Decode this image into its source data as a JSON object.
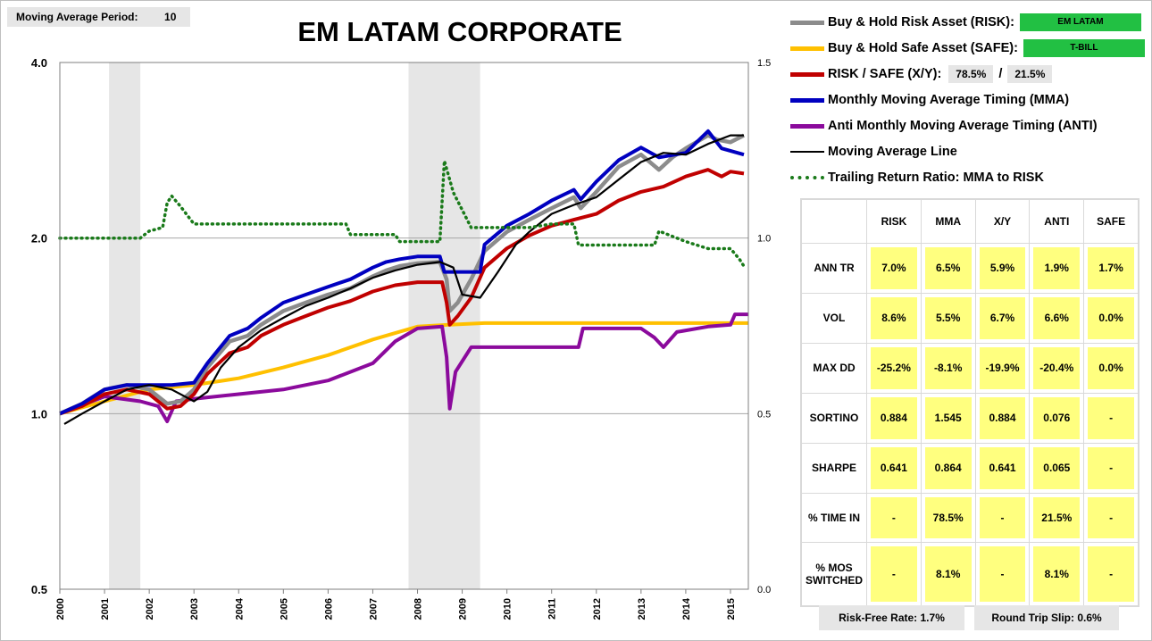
{
  "moving_average": {
    "label": "Moving Average Period:",
    "value": "10"
  },
  "title": "EM LATAM CORPORATE",
  "legend": {
    "risk_label": "Buy & Hold Risk Asset (RISK):",
    "risk_tag": "EM LATAM",
    "safe_label": "Buy & Hold Safe Asset (SAFE):",
    "safe_tag": "T-BILL",
    "xy_label": "RISK / SAFE (X/Y):",
    "xy_risk": "78.5%",
    "xy_sep": "/",
    "xy_safe": "21.5%",
    "mma_label": "Monthly Moving Average Timing (MMA)",
    "anti_label": "Anti Monthly Moving Average Timing (ANTI)",
    "ma_label": "Moving Average Line",
    "ratio_label": "Trailing Return Ratio: MMA to RISK"
  },
  "colors": {
    "risk": "#8c8c8c",
    "safe": "#ffc000",
    "xy": "#c00000",
    "mma": "#0000c0",
    "anti": "#8b0a9c",
    "ma": "#000000",
    "ratio": "#1a7a1a",
    "shade": "#e6e6e6",
    "tag": "#22c043",
    "cell": "#ffff7f"
  },
  "stats": {
    "columns": [
      "RISK",
      "MMA",
      "X/Y",
      "ANTI",
      "SAFE"
    ],
    "rows": [
      {
        "label": "ANN TR",
        "values": [
          "7.0%",
          "6.5%",
          "5.9%",
          "1.9%",
          "1.7%"
        ]
      },
      {
        "label": "VOL",
        "values": [
          "8.6%",
          "5.5%",
          "6.7%",
          "6.6%",
          "0.0%"
        ]
      },
      {
        "label": "MAX DD",
        "values": [
          "-25.2%",
          "-8.1%",
          "-19.9%",
          "-20.4%",
          "0.0%"
        ]
      },
      {
        "label": "SORTINO",
        "values": [
          "0.884",
          "1.545",
          "0.884",
          "0.076",
          "-"
        ]
      },
      {
        "label": "SHARPE",
        "values": [
          "0.641",
          "0.864",
          "0.641",
          "0.065",
          "-"
        ]
      },
      {
        "label": "% TIME IN",
        "values": [
          "-",
          "78.5%",
          "-",
          "21.5%",
          "-"
        ]
      },
      {
        "label": "% MOS SWITCHED",
        "values": [
          "-",
          "8.1%",
          "-",
          "8.1%",
          "-"
        ]
      }
    ]
  },
  "footer": {
    "risk_free": "Risk-Free Rate:   1.7%",
    "slip": "Round Trip Slip:  0.6%"
  },
  "chart_data": {
    "type": "line",
    "x_ticks": [
      "2000",
      "2001",
      "2002",
      "2003",
      "2004",
      "2005",
      "2006",
      "2007",
      "2008",
      "2009",
      "2010",
      "2011",
      "2012",
      "2013",
      "2014",
      "2015"
    ],
    "xlim": [
      2000.0,
      2015.4
    ],
    "y_left": {
      "scale": "log",
      "lim": [
        0.5,
        4.0
      ],
      "ticks": [
        "0.5",
        "1.0",
        "2.0",
        "4.0"
      ]
    },
    "y_right": {
      "scale": "linear",
      "lim": [
        0.0,
        1.5
      ],
      "ticks": [
        "0.0",
        "0.5",
        "1.0",
        "1.5"
      ]
    },
    "grid": "horizontal",
    "recession_shading": [
      [
        2001.1,
        2001.8
      ],
      [
        2007.8,
        2009.4
      ]
    ],
    "series": [
      {
        "name": "RISK",
        "axis": "left",
        "points": [
          [
            2000.0,
            1.0
          ],
          [
            2000.5,
            1.04
          ],
          [
            2001.0,
            1.1
          ],
          [
            2001.5,
            1.12
          ],
          [
            2002.0,
            1.1
          ],
          [
            2002.4,
            1.04
          ],
          [
            2002.7,
            1.05
          ],
          [
            2003.0,
            1.1
          ],
          [
            2003.3,
            1.2
          ],
          [
            2003.8,
            1.33
          ],
          [
            2004.2,
            1.36
          ],
          [
            2004.5,
            1.42
          ],
          [
            2005.0,
            1.5
          ],
          [
            2005.5,
            1.55
          ],
          [
            2006.0,
            1.6
          ],
          [
            2006.5,
            1.64
          ],
          [
            2007.0,
            1.72
          ],
          [
            2007.3,
            1.76
          ],
          [
            2007.6,
            1.79
          ],
          [
            2008.0,
            1.81
          ],
          [
            2008.5,
            1.82
          ],
          [
            2008.65,
            1.7
          ],
          [
            2008.72,
            1.5
          ],
          [
            2008.9,
            1.55
          ],
          [
            2009.2,
            1.7
          ],
          [
            2009.5,
            1.9
          ],
          [
            2010.0,
            2.05
          ],
          [
            2010.5,
            2.15
          ],
          [
            2011.0,
            2.25
          ],
          [
            2011.5,
            2.35
          ],
          [
            2011.65,
            2.25
          ],
          [
            2012.0,
            2.4
          ],
          [
            2012.5,
            2.65
          ],
          [
            2013.0,
            2.78
          ],
          [
            2013.4,
            2.62
          ],
          [
            2013.7,
            2.75
          ],
          [
            2014.0,
            2.85
          ],
          [
            2014.5,
            3.0
          ],
          [
            2014.7,
            2.95
          ],
          [
            2015.0,
            2.92
          ],
          [
            2015.3,
            3.0
          ]
        ]
      },
      {
        "name": "SAFE",
        "axis": "left",
        "points": [
          [
            2000.0,
            1.0
          ],
          [
            2001.0,
            1.05
          ],
          [
            2002.0,
            1.1
          ],
          [
            2003.0,
            1.12
          ],
          [
            2004.0,
            1.15
          ],
          [
            2005.0,
            1.2
          ],
          [
            2006.0,
            1.26
          ],
          [
            2007.0,
            1.34
          ],
          [
            2008.0,
            1.41
          ],
          [
            2008.7,
            1.42
          ],
          [
            2009.5,
            1.43
          ],
          [
            2011.0,
            1.43
          ],
          [
            2013.0,
            1.43
          ],
          [
            2015.4,
            1.43
          ]
        ]
      },
      {
        "name": "X/Y",
        "axis": "left",
        "points": [
          [
            2000.0,
            1.0
          ],
          [
            2000.5,
            1.03
          ],
          [
            2001.0,
            1.08
          ],
          [
            2001.5,
            1.1
          ],
          [
            2002.0,
            1.08
          ],
          [
            2002.4,
            1.02
          ],
          [
            2002.7,
            1.03
          ],
          [
            2003.0,
            1.08
          ],
          [
            2003.3,
            1.17
          ],
          [
            2003.8,
            1.27
          ],
          [
            2004.2,
            1.3
          ],
          [
            2004.5,
            1.36
          ],
          [
            2005.0,
            1.42
          ],
          [
            2005.5,
            1.47
          ],
          [
            2006.0,
            1.52
          ],
          [
            2006.5,
            1.56
          ],
          [
            2007.0,
            1.62
          ],
          [
            2007.5,
            1.66
          ],
          [
            2008.0,
            1.68
          ],
          [
            2008.55,
            1.68
          ],
          [
            2008.65,
            1.55
          ],
          [
            2008.72,
            1.42
          ],
          [
            2008.9,
            1.47
          ],
          [
            2009.2,
            1.58
          ],
          [
            2009.5,
            1.78
          ],
          [
            2010.0,
            1.92
          ],
          [
            2010.5,
            2.02
          ],
          [
            2011.0,
            2.1
          ],
          [
            2011.5,
            2.15
          ],
          [
            2012.0,
            2.2
          ],
          [
            2012.5,
            2.32
          ],
          [
            2013.0,
            2.4
          ],
          [
            2013.5,
            2.45
          ],
          [
            2014.0,
            2.55
          ],
          [
            2014.5,
            2.62
          ],
          [
            2014.8,
            2.55
          ],
          [
            2015.0,
            2.6
          ],
          [
            2015.3,
            2.58
          ]
        ]
      },
      {
        "name": "MMA",
        "axis": "left",
        "points": [
          [
            2000.0,
            1.0
          ],
          [
            2000.5,
            1.04
          ],
          [
            2001.0,
            1.1
          ],
          [
            2001.5,
            1.12
          ],
          [
            2002.0,
            1.12
          ],
          [
            2002.5,
            1.12
          ],
          [
            2003.0,
            1.13
          ],
          [
            2003.3,
            1.22
          ],
          [
            2003.8,
            1.36
          ],
          [
            2004.2,
            1.4
          ],
          [
            2004.5,
            1.46
          ],
          [
            2005.0,
            1.55
          ],
          [
            2005.5,
            1.6
          ],
          [
            2006.0,
            1.65
          ],
          [
            2006.5,
            1.7
          ],
          [
            2007.0,
            1.78
          ],
          [
            2007.3,
            1.82
          ],
          [
            2007.6,
            1.84
          ],
          [
            2008.0,
            1.86
          ],
          [
            2008.5,
            1.86
          ],
          [
            2008.6,
            1.75
          ],
          [
            2009.4,
            1.75
          ],
          [
            2009.5,
            1.95
          ],
          [
            2010.0,
            2.1
          ],
          [
            2010.5,
            2.2
          ],
          [
            2011.0,
            2.32
          ],
          [
            2011.5,
            2.42
          ],
          [
            2011.65,
            2.33
          ],
          [
            2012.0,
            2.5
          ],
          [
            2012.5,
            2.72
          ],
          [
            2013.0,
            2.86
          ],
          [
            2013.4,
            2.75
          ],
          [
            2014.0,
            2.8
          ],
          [
            2014.5,
            3.05
          ],
          [
            2014.8,
            2.85
          ],
          [
            2015.3,
            2.78
          ]
        ]
      },
      {
        "name": "ANTI",
        "axis": "left",
        "points": [
          [
            2000.0,
            1.0
          ],
          [
            2001.0,
            1.07
          ],
          [
            2001.8,
            1.05
          ],
          [
            2002.2,
            1.03
          ],
          [
            2002.4,
            0.97
          ],
          [
            2002.6,
            1.05
          ],
          [
            2003.0,
            1.06
          ],
          [
            2004.0,
            1.08
          ],
          [
            2005.0,
            1.1
          ],
          [
            2006.0,
            1.14
          ],
          [
            2007.0,
            1.22
          ],
          [
            2007.5,
            1.33
          ],
          [
            2008.0,
            1.4
          ],
          [
            2008.55,
            1.41
          ],
          [
            2008.65,
            1.25
          ],
          [
            2008.72,
            1.02
          ],
          [
            2008.85,
            1.18
          ],
          [
            2009.2,
            1.3
          ],
          [
            2010.0,
            1.3
          ],
          [
            2011.0,
            1.3
          ],
          [
            2011.6,
            1.3
          ],
          [
            2011.7,
            1.4
          ],
          [
            2013.0,
            1.4
          ],
          [
            2013.3,
            1.35
          ],
          [
            2013.5,
            1.3
          ],
          [
            2013.8,
            1.38
          ],
          [
            2014.5,
            1.41
          ],
          [
            2015.0,
            1.42
          ],
          [
            2015.1,
            1.48
          ],
          [
            2015.4,
            1.48
          ]
        ]
      },
      {
        "name": "Moving Average Line",
        "axis": "left",
        "points": [
          [
            2000.1,
            0.96
          ],
          [
            2000.5,
            1.0
          ],
          [
            2001.0,
            1.05
          ],
          [
            2001.5,
            1.1
          ],
          [
            2002.0,
            1.12
          ],
          [
            2002.5,
            1.1
          ],
          [
            2003.0,
            1.05
          ],
          [
            2003.3,
            1.09
          ],
          [
            2003.6,
            1.2
          ],
          [
            2004.0,
            1.3
          ],
          [
            2004.5,
            1.39
          ],
          [
            2005.0,
            1.46
          ],
          [
            2005.5,
            1.53
          ],
          [
            2006.0,
            1.58
          ],
          [
            2006.5,
            1.64
          ],
          [
            2007.0,
            1.71
          ],
          [
            2007.5,
            1.76
          ],
          [
            2008.0,
            1.8
          ],
          [
            2008.5,
            1.82
          ],
          [
            2008.8,
            1.78
          ],
          [
            2009.0,
            1.6
          ],
          [
            2009.4,
            1.58
          ],
          [
            2009.8,
            1.75
          ],
          [
            2010.2,
            1.95
          ],
          [
            2010.5,
            2.05
          ],
          [
            2011.0,
            2.2
          ],
          [
            2011.5,
            2.28
          ],
          [
            2012.0,
            2.35
          ],
          [
            2012.5,
            2.52
          ],
          [
            2013.0,
            2.7
          ],
          [
            2013.5,
            2.8
          ],
          [
            2014.0,
            2.78
          ],
          [
            2014.5,
            2.9
          ],
          [
            2015.0,
            3.0
          ],
          [
            2015.3,
            3.0
          ]
        ]
      },
      {
        "name": "Trailing Return Ratio: MMA to RISK",
        "axis": "right",
        "points": [
          [
            2000.0,
            1.0
          ],
          [
            2001.8,
            1.0
          ],
          [
            2002.0,
            1.02
          ],
          [
            2002.3,
            1.03
          ],
          [
            2002.4,
            1.1
          ],
          [
            2002.5,
            1.12
          ],
          [
            2002.7,
            1.09
          ],
          [
            2003.0,
            1.04
          ],
          [
            2004.0,
            1.04
          ],
          [
            2005.0,
            1.04
          ],
          [
            2006.0,
            1.04
          ],
          [
            2006.4,
            1.04
          ],
          [
            2006.5,
            1.01
          ],
          [
            2007.5,
            1.01
          ],
          [
            2007.6,
            0.99
          ],
          [
            2008.5,
            0.99
          ],
          [
            2008.6,
            1.22
          ],
          [
            2008.8,
            1.13
          ],
          [
            2009.0,
            1.08
          ],
          [
            2009.2,
            1.03
          ],
          [
            2010.0,
            1.03
          ],
          [
            2010.5,
            1.03
          ],
          [
            2011.0,
            1.04
          ],
          [
            2011.5,
            1.04
          ],
          [
            2011.6,
            0.98
          ],
          [
            2012.0,
            0.98
          ],
          [
            2013.0,
            0.98
          ],
          [
            2013.3,
            0.98
          ],
          [
            2013.4,
            1.02
          ],
          [
            2013.6,
            1.01
          ],
          [
            2014.0,
            0.99
          ],
          [
            2014.5,
            0.97
          ],
          [
            2015.0,
            0.97
          ],
          [
            2015.2,
            0.94
          ],
          [
            2015.3,
            0.92
          ]
        ]
      }
    ]
  }
}
